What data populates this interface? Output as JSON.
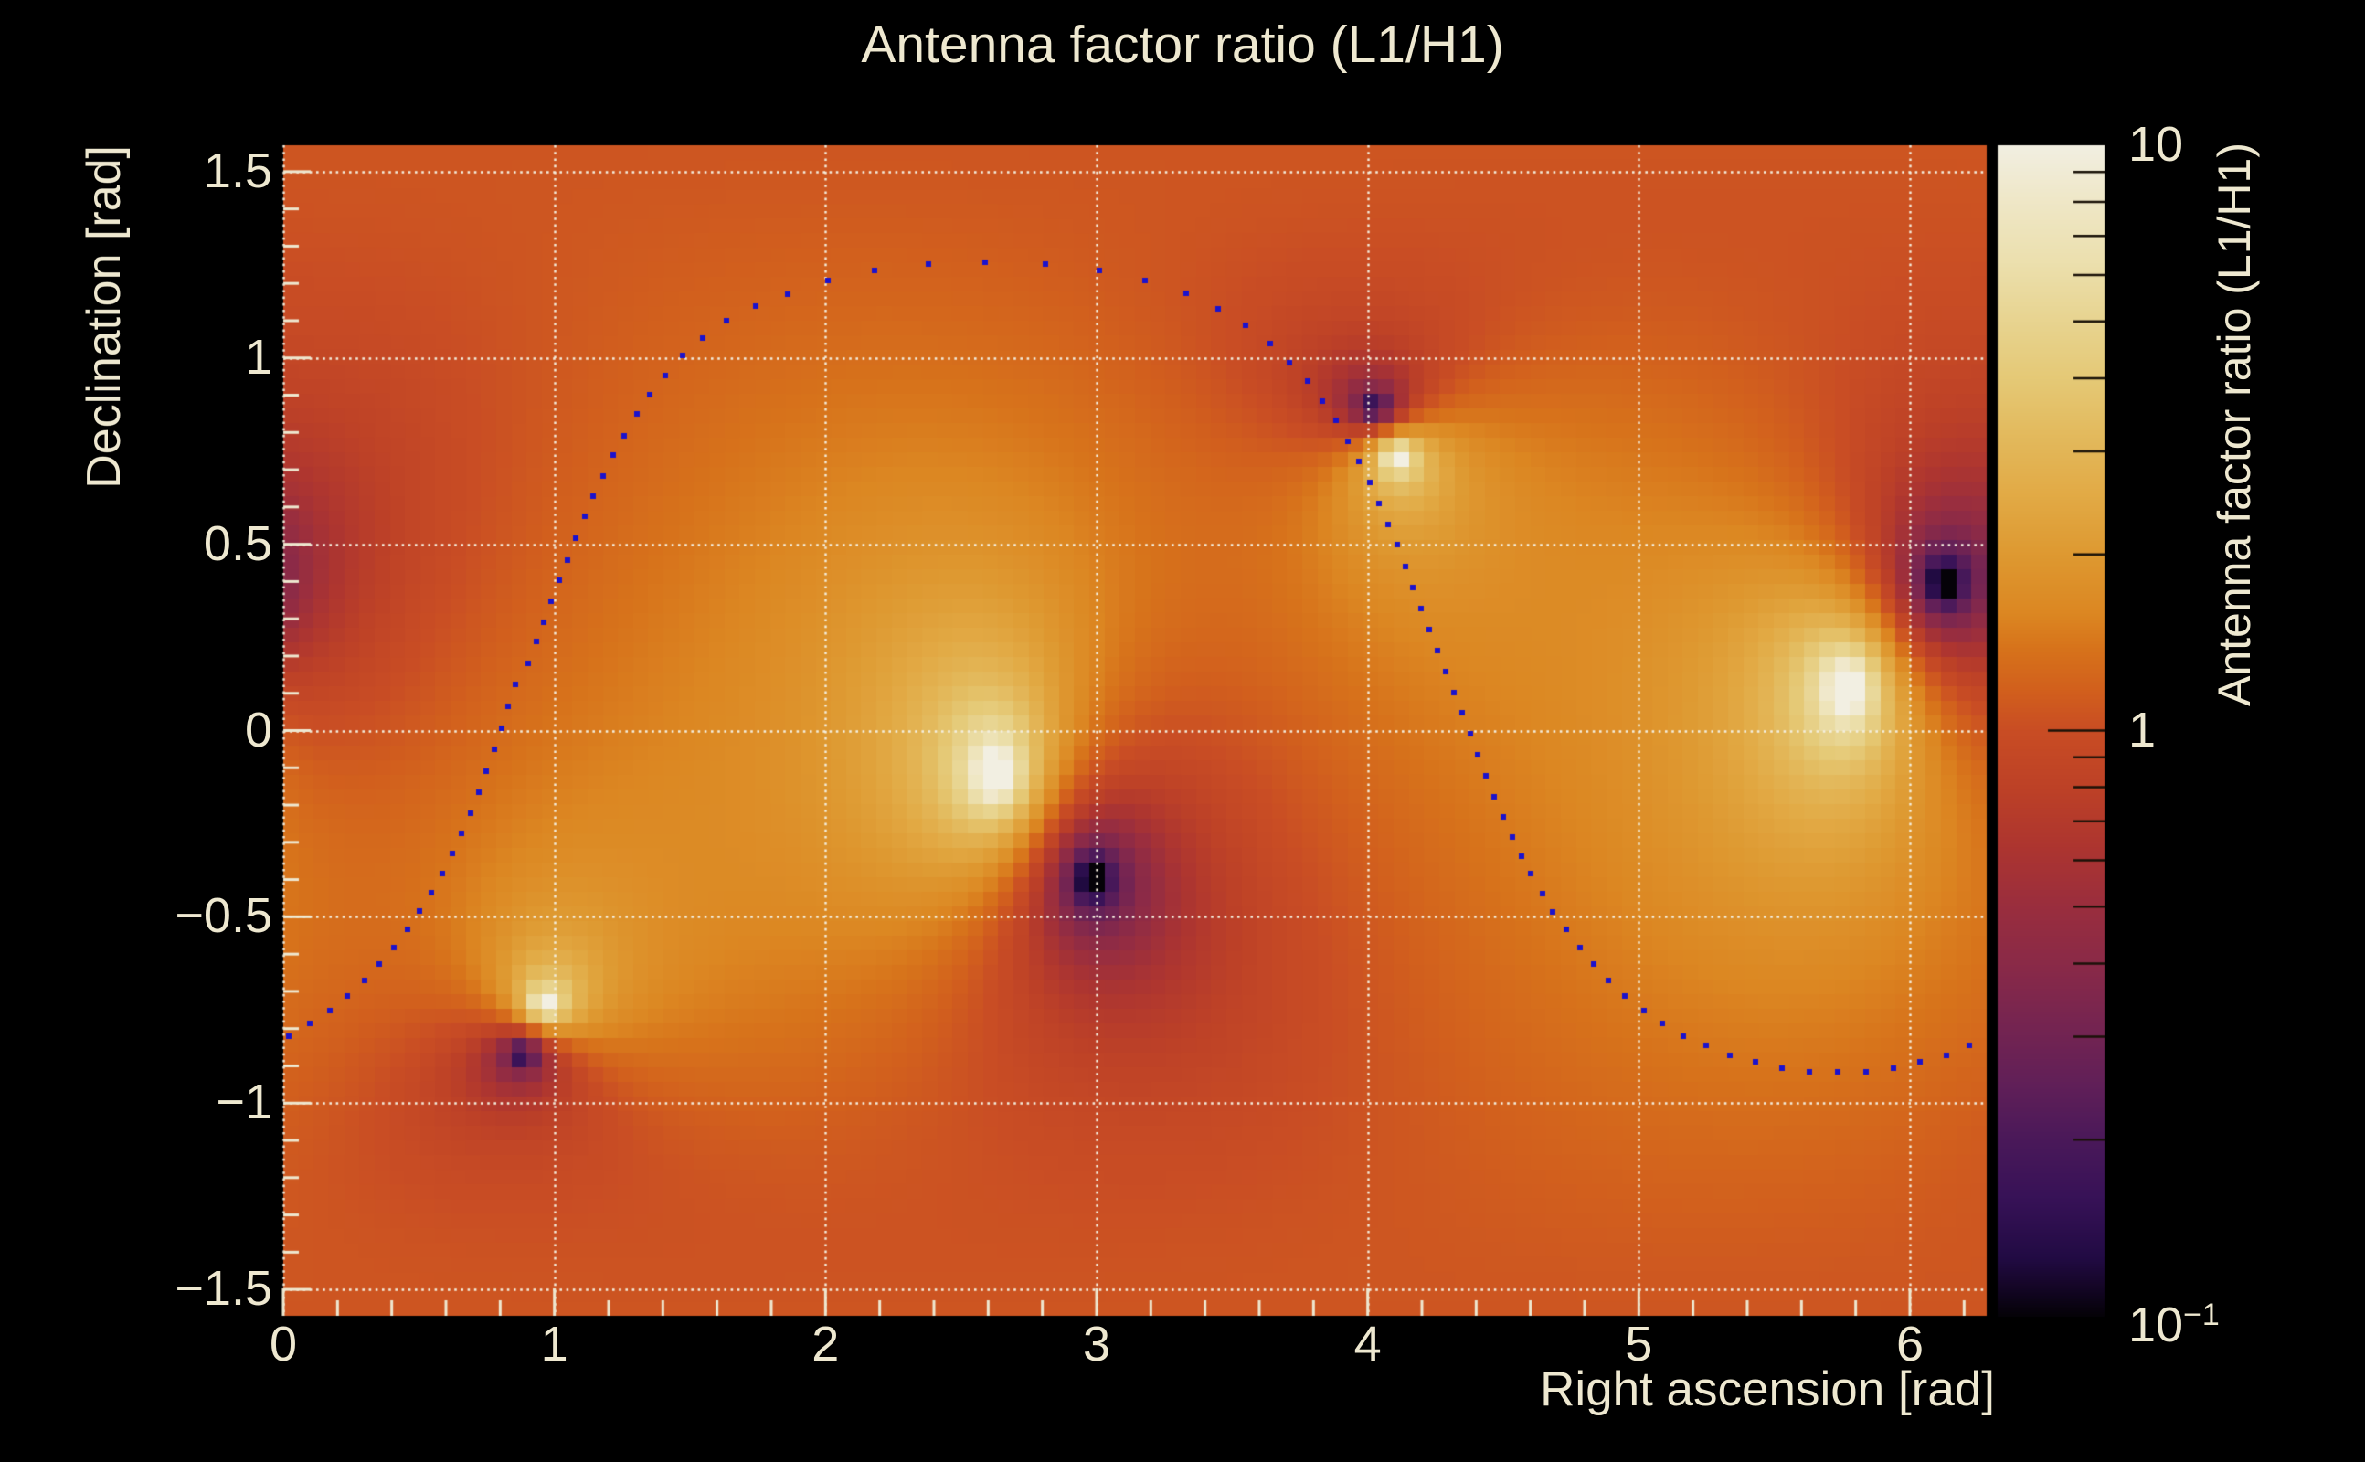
{
  "title": "Antenna factor ratio (L1/H1)",
  "x_axis": {
    "label": "Right ascension [rad]",
    "range": [
      0,
      6.28319
    ],
    "minor_step": 0.2,
    "ticks": [
      {
        "v": 0,
        "t": "0"
      },
      {
        "v": 1,
        "t": "1"
      },
      {
        "v": 2,
        "t": "2"
      },
      {
        "v": 3,
        "t": "3"
      },
      {
        "v": 4,
        "t": "4"
      },
      {
        "v": 5,
        "t": "5"
      },
      {
        "v": 6,
        "t": "6"
      }
    ]
  },
  "y_axis": {
    "label": "Declination [rad]",
    "range": [
      -1.5708,
      1.5708
    ],
    "minor_step": 0.1,
    "ticks": [
      {
        "v": 1.5,
        "t": "1.5"
      },
      {
        "v": 1.0,
        "t": "1"
      },
      {
        "v": 0.5,
        "t": "0.5"
      },
      {
        "v": 0,
        "t": "0"
      },
      {
        "v": -0.5,
        "t": "−0.5"
      },
      {
        "v": -1.0,
        "t": "−1"
      },
      {
        "v": -1.5,
        "t": "−1.5"
      }
    ]
  },
  "colorbar": {
    "label": "Antenna factor ratio (L1/H1)",
    "scale": "log",
    "min": 0.1,
    "max": 10,
    "labels": [
      {
        "v": 10,
        "base": "10",
        "sup": ""
      },
      {
        "v": 1,
        "base": "1",
        "sup": ""
      },
      {
        "v": 0.1,
        "base": "10",
        "sup": "−1"
      }
    ]
  },
  "theme": {
    "background": "#000000",
    "text_color": "#eee8d0",
    "grid_color": "#f4efdf",
    "axis_tick_color": "#eee8d0",
    "colorbar_tick_color": "#1a1208",
    "marker_color": "#1b12cd"
  },
  "chart_data": {
    "type": "heatmap",
    "title": "Antenna factor ratio (L1/H1)",
    "xlabel": "Right ascension [rad]",
    "ylabel": "Declination [rad]",
    "zlabel": "Antenna factor ratio (L1/H1)",
    "x_range": [
      0,
      6.28319
    ],
    "y_range": [
      -1.5708,
      1.5708
    ],
    "z_scale": "log10",
    "z_range": [
      0.1,
      10
    ],
    "grid": "dotted",
    "bins": [
      112,
      80
    ],
    "background_log10_ratio": 0.12,
    "maxima_H1_nulls": [
      [
        2.629,
        -0.115
      ],
      [
        5.771,
        0.115
      ],
      [
        4.107,
        0.737
      ],
      [
        0.965,
        -0.737
      ]
    ],
    "minima_L1_nulls": [
      [
        2.983,
        -0.395
      ],
      [
        6.125,
        0.395
      ],
      [
        4.027,
        0.866
      ],
      [
        0.885,
        -0.866
      ]
    ],
    "palette": [
      [
        0.0,
        "#050208"
      ],
      [
        0.025,
        "#150627"
      ],
      [
        0.05,
        "#220b44"
      ],
      [
        0.1,
        "#371257"
      ],
      [
        0.15,
        "#4a195a"
      ],
      [
        0.2,
        "#622058"
      ],
      [
        0.25,
        "#762551"
      ],
      [
        0.3,
        "#8a2a48"
      ],
      [
        0.35,
        "#9a2e3e"
      ],
      [
        0.4,
        "#ad3530"
      ],
      [
        0.45,
        "#bd4127"
      ],
      [
        0.5,
        "#c94d24"
      ],
      [
        0.535,
        "#d2601d"
      ],
      [
        0.57,
        "#d7731b"
      ],
      [
        0.6,
        "#dc8722"
      ],
      [
        0.65,
        "#de9931"
      ],
      [
        0.7,
        "#e2aa45"
      ],
      [
        0.75,
        "#e3b95c"
      ],
      [
        0.8,
        "#e5c976"
      ],
      [
        0.85,
        "#e8d490"
      ],
      [
        0.9,
        "#ece0ae"
      ],
      [
        0.95,
        "#efe7c6"
      ],
      [
        1.0,
        "#f2efe2"
      ]
    ],
    "track": {
      "marker": "square",
      "size": 6,
      "points": [
        [
          0.02,
          -0.82
        ],
        [
          0.098,
          -0.785
        ],
        [
          0.172,
          -0.751
        ],
        [
          0.236,
          -0.712
        ],
        [
          0.3,
          -0.67
        ],
        [
          0.354,
          -0.627
        ],
        [
          0.408,
          -0.583
        ],
        [
          0.458,
          -0.534
        ],
        [
          0.503,
          -0.485
        ],
        [
          0.545,
          -0.435
        ],
        [
          0.585,
          -0.383
        ],
        [
          0.622,
          -0.33
        ],
        [
          0.657,
          -0.276
        ],
        [
          0.69,
          -0.221
        ],
        [
          0.721,
          -0.165
        ],
        [
          0.75,
          -0.108
        ],
        [
          0.778,
          -0.051
        ],
        [
          0.805,
          0.007
        ],
        [
          0.83,
          0.065
        ],
        [
          0.855,
          0.123
        ],
        [
          0.903,
          0.181
        ],
        [
          0.933,
          0.239
        ],
        [
          0.96,
          0.29
        ],
        [
          0.987,
          0.348
        ],
        [
          1.018,
          0.403
        ],
        [
          1.048,
          0.457
        ],
        [
          1.078,
          0.517
        ],
        [
          1.112,
          0.575
        ],
        [
          1.142,
          0.628
        ],
        [
          1.179,
          0.683
        ],
        [
          1.216,
          0.739
        ],
        [
          1.257,
          0.792
        ],
        [
          1.304,
          0.85
        ],
        [
          1.351,
          0.901
        ],
        [
          1.409,
          0.954
        ],
        [
          1.473,
          1.007
        ],
        [
          1.547,
          1.053
        ],
        [
          1.635,
          1.1
        ],
        [
          1.742,
          1.138
        ],
        [
          1.86,
          1.17
        ],
        [
          2.01,
          1.207
        ],
        [
          2.18,
          1.234
        ],
        [
          2.38,
          1.253
        ],
        [
          2.59,
          1.258
        ],
        [
          2.81,
          1.253
        ],
        [
          3.01,
          1.234
        ],
        [
          3.18,
          1.207
        ],
        [
          3.33,
          1.173
        ],
        [
          3.45,
          1.132
        ],
        [
          3.55,
          1.088
        ],
        [
          3.64,
          1.039
        ],
        [
          3.71,
          0.988
        ],
        [
          3.78,
          0.939
        ],
        [
          3.832,
          0.885
        ],
        [
          3.883,
          0.832
        ],
        [
          3.927,
          0.776
        ],
        [
          3.967,
          0.722
        ],
        [
          4.008,
          0.666
        ],
        [
          4.042,
          0.61
        ],
        [
          4.076,
          0.554
        ],
        [
          4.11,
          0.498
        ],
        [
          4.14,
          0.439
        ],
        [
          4.167,
          0.383
        ],
        [
          4.197,
          0.327
        ],
        [
          4.227,
          0.271
        ],
        [
          4.257,
          0.215
        ],
        [
          4.287,
          0.159
        ],
        [
          4.317,
          0.103
        ],
        [
          4.347,
          0.047
        ],
        [
          4.377,
          -0.009
        ],
        [
          4.407,
          -0.065
        ],
        [
          4.437,
          -0.121
        ],
        [
          4.467,
          -0.177
        ],
        [
          4.5,
          -0.232
        ],
        [
          4.534,
          -0.285
        ],
        [
          4.567,
          -0.336
        ],
        [
          4.601,
          -0.385
        ],
        [
          4.645,
          -0.437
        ],
        [
          4.682,
          -0.488
        ],
        [
          4.733,
          -0.534
        ],
        [
          4.783,
          -0.583
        ],
        [
          4.834,
          -0.627
        ],
        [
          4.888,
          -0.671
        ],
        [
          4.949,
          -0.712
        ],
        [
          5.019,
          -0.751
        ],
        [
          5.087,
          -0.785
        ],
        [
          5.164,
          -0.82
        ],
        [
          5.249,
          -0.846
        ],
        [
          5.336,
          -0.871
        ],
        [
          5.431,
          -0.89
        ],
        [
          5.529,
          -0.905
        ],
        [
          5.63,
          -0.917
        ],
        [
          5.734,
          -0.917
        ],
        [
          5.839,
          -0.915
        ],
        [
          5.94,
          -0.905
        ],
        [
          6.038,
          -0.89
        ],
        [
          6.135,
          -0.871
        ],
        [
          6.22,
          -0.846
        ]
      ]
    }
  }
}
